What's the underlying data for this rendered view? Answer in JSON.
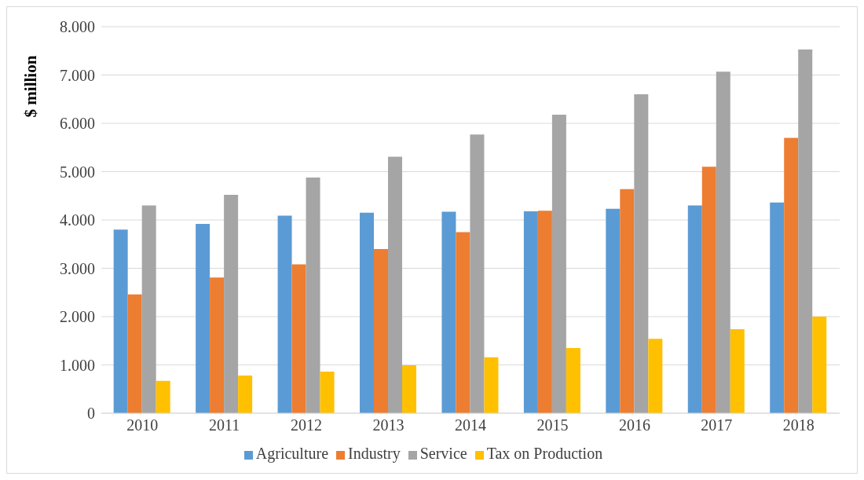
{
  "chart_data": {
    "type": "bar",
    "ylabel": "$ million",
    "categories": [
      "2010",
      "2011",
      "2012",
      "2013",
      "2014",
      "2015",
      "2016",
      "2017",
      "2018"
    ],
    "series": [
      {
        "name": "Agriculture",
        "color": "#5b9bd5",
        "values": [
          3800,
          3920,
          4090,
          4150,
          4170,
          4180,
          4230,
          4300,
          4360
        ]
      },
      {
        "name": "Industry",
        "color": "#ed7d31",
        "values": [
          2460,
          2810,
          3080,
          3400,
          3750,
          4190,
          4640,
          5100,
          5700
        ]
      },
      {
        "name": "Service",
        "color": "#a5a5a5",
        "values": [
          4300,
          4520,
          4880,
          5310,
          5770,
          6180,
          6600,
          7070,
          7530
        ]
      },
      {
        "name": "Tax on Production",
        "color": "#ffc000",
        "values": [
          670,
          780,
          860,
          990,
          1160,
          1350,
          1540,
          1740,
          2000
        ]
      }
    ],
    "ylim": [
      0,
      8000
    ],
    "yticks": [
      0,
      {
        "value": 1000,
        "label": "1.000"
      },
      {
        "value": 2000,
        "label": "2.000"
      },
      {
        "value": 3000,
        "label": "3.000"
      },
      {
        "value": 4000,
        "label": "4.000"
      },
      {
        "value": 5000,
        "label": "5.000"
      },
      {
        "value": 6000,
        "label": "6.000"
      },
      {
        "value": 7000,
        "label": "7.000"
      },
      {
        "value": 8000,
        "label": "8.000"
      }
    ],
    "grid": "y",
    "legend": "bottom"
  }
}
